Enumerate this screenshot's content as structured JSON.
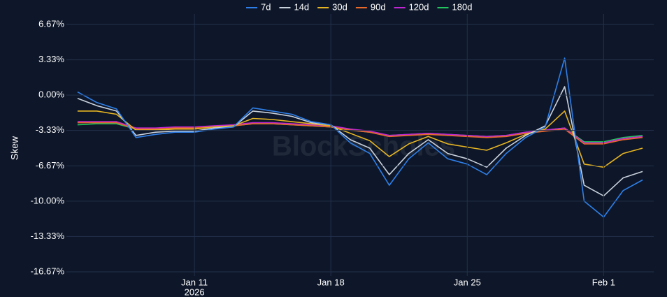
{
  "chart_data": {
    "type": "line",
    "y_label": "Skew",
    "watermark": "BlockScholes",
    "x": [
      "2026-01-05",
      "2026-01-06",
      "2026-01-07",
      "2026-01-08",
      "2026-01-09",
      "2026-01-10",
      "2026-01-11",
      "2026-01-12",
      "2026-01-13",
      "2026-01-14",
      "2026-01-15",
      "2026-01-16",
      "2026-01-17",
      "2026-01-18",
      "2026-01-19",
      "2026-01-20",
      "2026-01-21",
      "2026-01-22",
      "2026-01-23",
      "2026-01-24",
      "2026-01-25",
      "2026-01-26",
      "2026-01-27",
      "2026-01-28",
      "2026-01-29",
      "2026-01-30",
      "2026-01-31",
      "2026-02-01",
      "2026-02-02",
      "2026-02-03"
    ],
    "xlim": [
      "2026-01-04",
      "2026-02-04"
    ],
    "xticks": [
      {
        "value": "2026-01-11",
        "label": "Jan 11"
      },
      {
        "value": "2026-01-18",
        "label": "Jan 18"
      },
      {
        "value": "2026-01-25",
        "label": "Jan 25"
      },
      {
        "value": "2026-02-01",
        "label": "Feb 1"
      }
    ],
    "x_year_label": "2026",
    "ylim": [
      -16.67,
      6.67
    ],
    "yticks": [
      {
        "value": 6.67,
        "label": "6.67%"
      },
      {
        "value": 3.33,
        "label": "3.33%"
      },
      {
        "value": 0,
        "label": "0.00%"
      },
      {
        "value": -3.33,
        "label": "-3.33%"
      },
      {
        "value": -6.67,
        "label": "-6.67%"
      },
      {
        "value": -10,
        "label": "-10.00%"
      },
      {
        "value": -13.33,
        "label": "-13.33%"
      },
      {
        "value": -16.67,
        "label": "-16.67%"
      }
    ],
    "grid": true,
    "legend": "top",
    "series": [
      {
        "name": "7d",
        "color": "#2f7fe8",
        "values": [
          0.3,
          -0.7,
          -1.3,
          -4.0,
          -3.7,
          -3.5,
          -3.5,
          -3.2,
          -3.0,
          -1.2,
          -1.5,
          -1.8,
          -2.5,
          -2.8,
          -4.5,
          -5.5,
          -8.5,
          -6.0,
          -4.5,
          -6.0,
          -6.5,
          -7.5,
          -5.5,
          -4.0,
          -3.0,
          3.5,
          -10.0,
          -11.5,
          -9.0,
          -8.0
        ]
      },
      {
        "name": "14d",
        "color": "#c9d1dc",
        "values": [
          -0.3,
          -1.0,
          -1.5,
          -3.8,
          -3.5,
          -3.4,
          -3.4,
          -3.1,
          -3.0,
          -1.5,
          -1.7,
          -2.0,
          -2.6,
          -2.8,
          -4.2,
          -5.0,
          -7.5,
          -5.5,
          -4.2,
          -5.5,
          -6.0,
          -6.8,
          -5.0,
          -3.8,
          -2.9,
          0.8,
          -8.5,
          -9.5,
          -7.8,
          -7.2
        ]
      },
      {
        "name": "30d",
        "color": "#e6b422",
        "values": [
          -1.5,
          -1.5,
          -1.8,
          -3.3,
          -3.3,
          -3.2,
          -3.2,
          -3.0,
          -2.9,
          -2.2,
          -2.3,
          -2.5,
          -2.7,
          -2.9,
          -3.6,
          -4.3,
          -5.8,
          -4.6,
          -3.9,
          -4.6,
          -4.9,
          -5.2,
          -4.5,
          -3.7,
          -3.2,
          -1.5,
          -6.5,
          -6.8,
          -5.5,
          -5.0
        ]
      },
      {
        "name": "90d",
        "color": "#e8692a",
        "values": [
          -2.6,
          -2.6,
          -2.6,
          -3.2,
          -3.2,
          -3.1,
          -3.1,
          -3.0,
          -2.9,
          -2.7,
          -2.7,
          -2.8,
          -2.9,
          -3.0,
          -3.3,
          -3.5,
          -3.9,
          -3.8,
          -3.7,
          -3.8,
          -3.9,
          -4.0,
          -3.9,
          -3.6,
          -3.4,
          -3.2,
          -4.6,
          -4.6,
          -4.2,
          -4.0
        ]
      },
      {
        "name": "120d",
        "color": "#c026d3",
        "values": [
          -2.5,
          -2.5,
          -2.5,
          -3.1,
          -3.1,
          -3.0,
          -3.0,
          -2.9,
          -2.8,
          -2.6,
          -2.6,
          -2.7,
          -2.8,
          -2.9,
          -3.2,
          -3.4,
          -3.8,
          -3.7,
          -3.6,
          -3.7,
          -3.8,
          -3.9,
          -3.8,
          -3.5,
          -3.3,
          -3.1,
          -4.5,
          -4.5,
          -4.1,
          -3.9
        ]
      },
      {
        "name": "180d",
        "color": "#22c55e",
        "values": [
          -2.8,
          -2.7,
          -2.7,
          -3.2,
          -3.2,
          -3.1,
          -3.1,
          -3.0,
          -2.9,
          -2.7,
          -2.7,
          -2.8,
          -2.9,
          -3.0,
          -3.3,
          -3.5,
          -3.8,
          -3.7,
          -3.6,
          -3.7,
          -3.8,
          -3.9,
          -3.8,
          -3.5,
          -3.3,
          -3.1,
          -4.4,
          -4.4,
          -4.0,
          -3.8
        ]
      }
    ]
  }
}
